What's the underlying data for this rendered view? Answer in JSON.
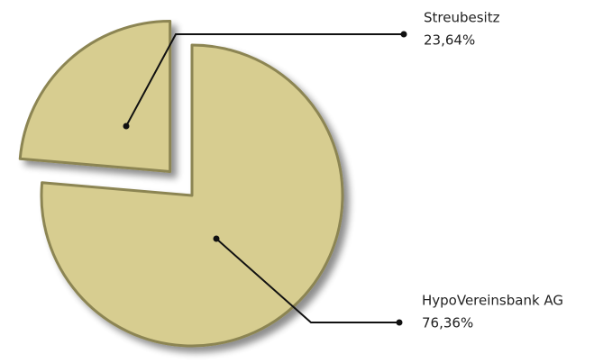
{
  "chart_data": {
    "type": "pie",
    "categories": [
      "HypoVereinsbank AG",
      "Streubesitz"
    ],
    "values": [
      76.36,
      23.64
    ],
    "value_labels": [
      "76,36%",
      "23,64%"
    ],
    "color": "#d7cd90"
  }
}
